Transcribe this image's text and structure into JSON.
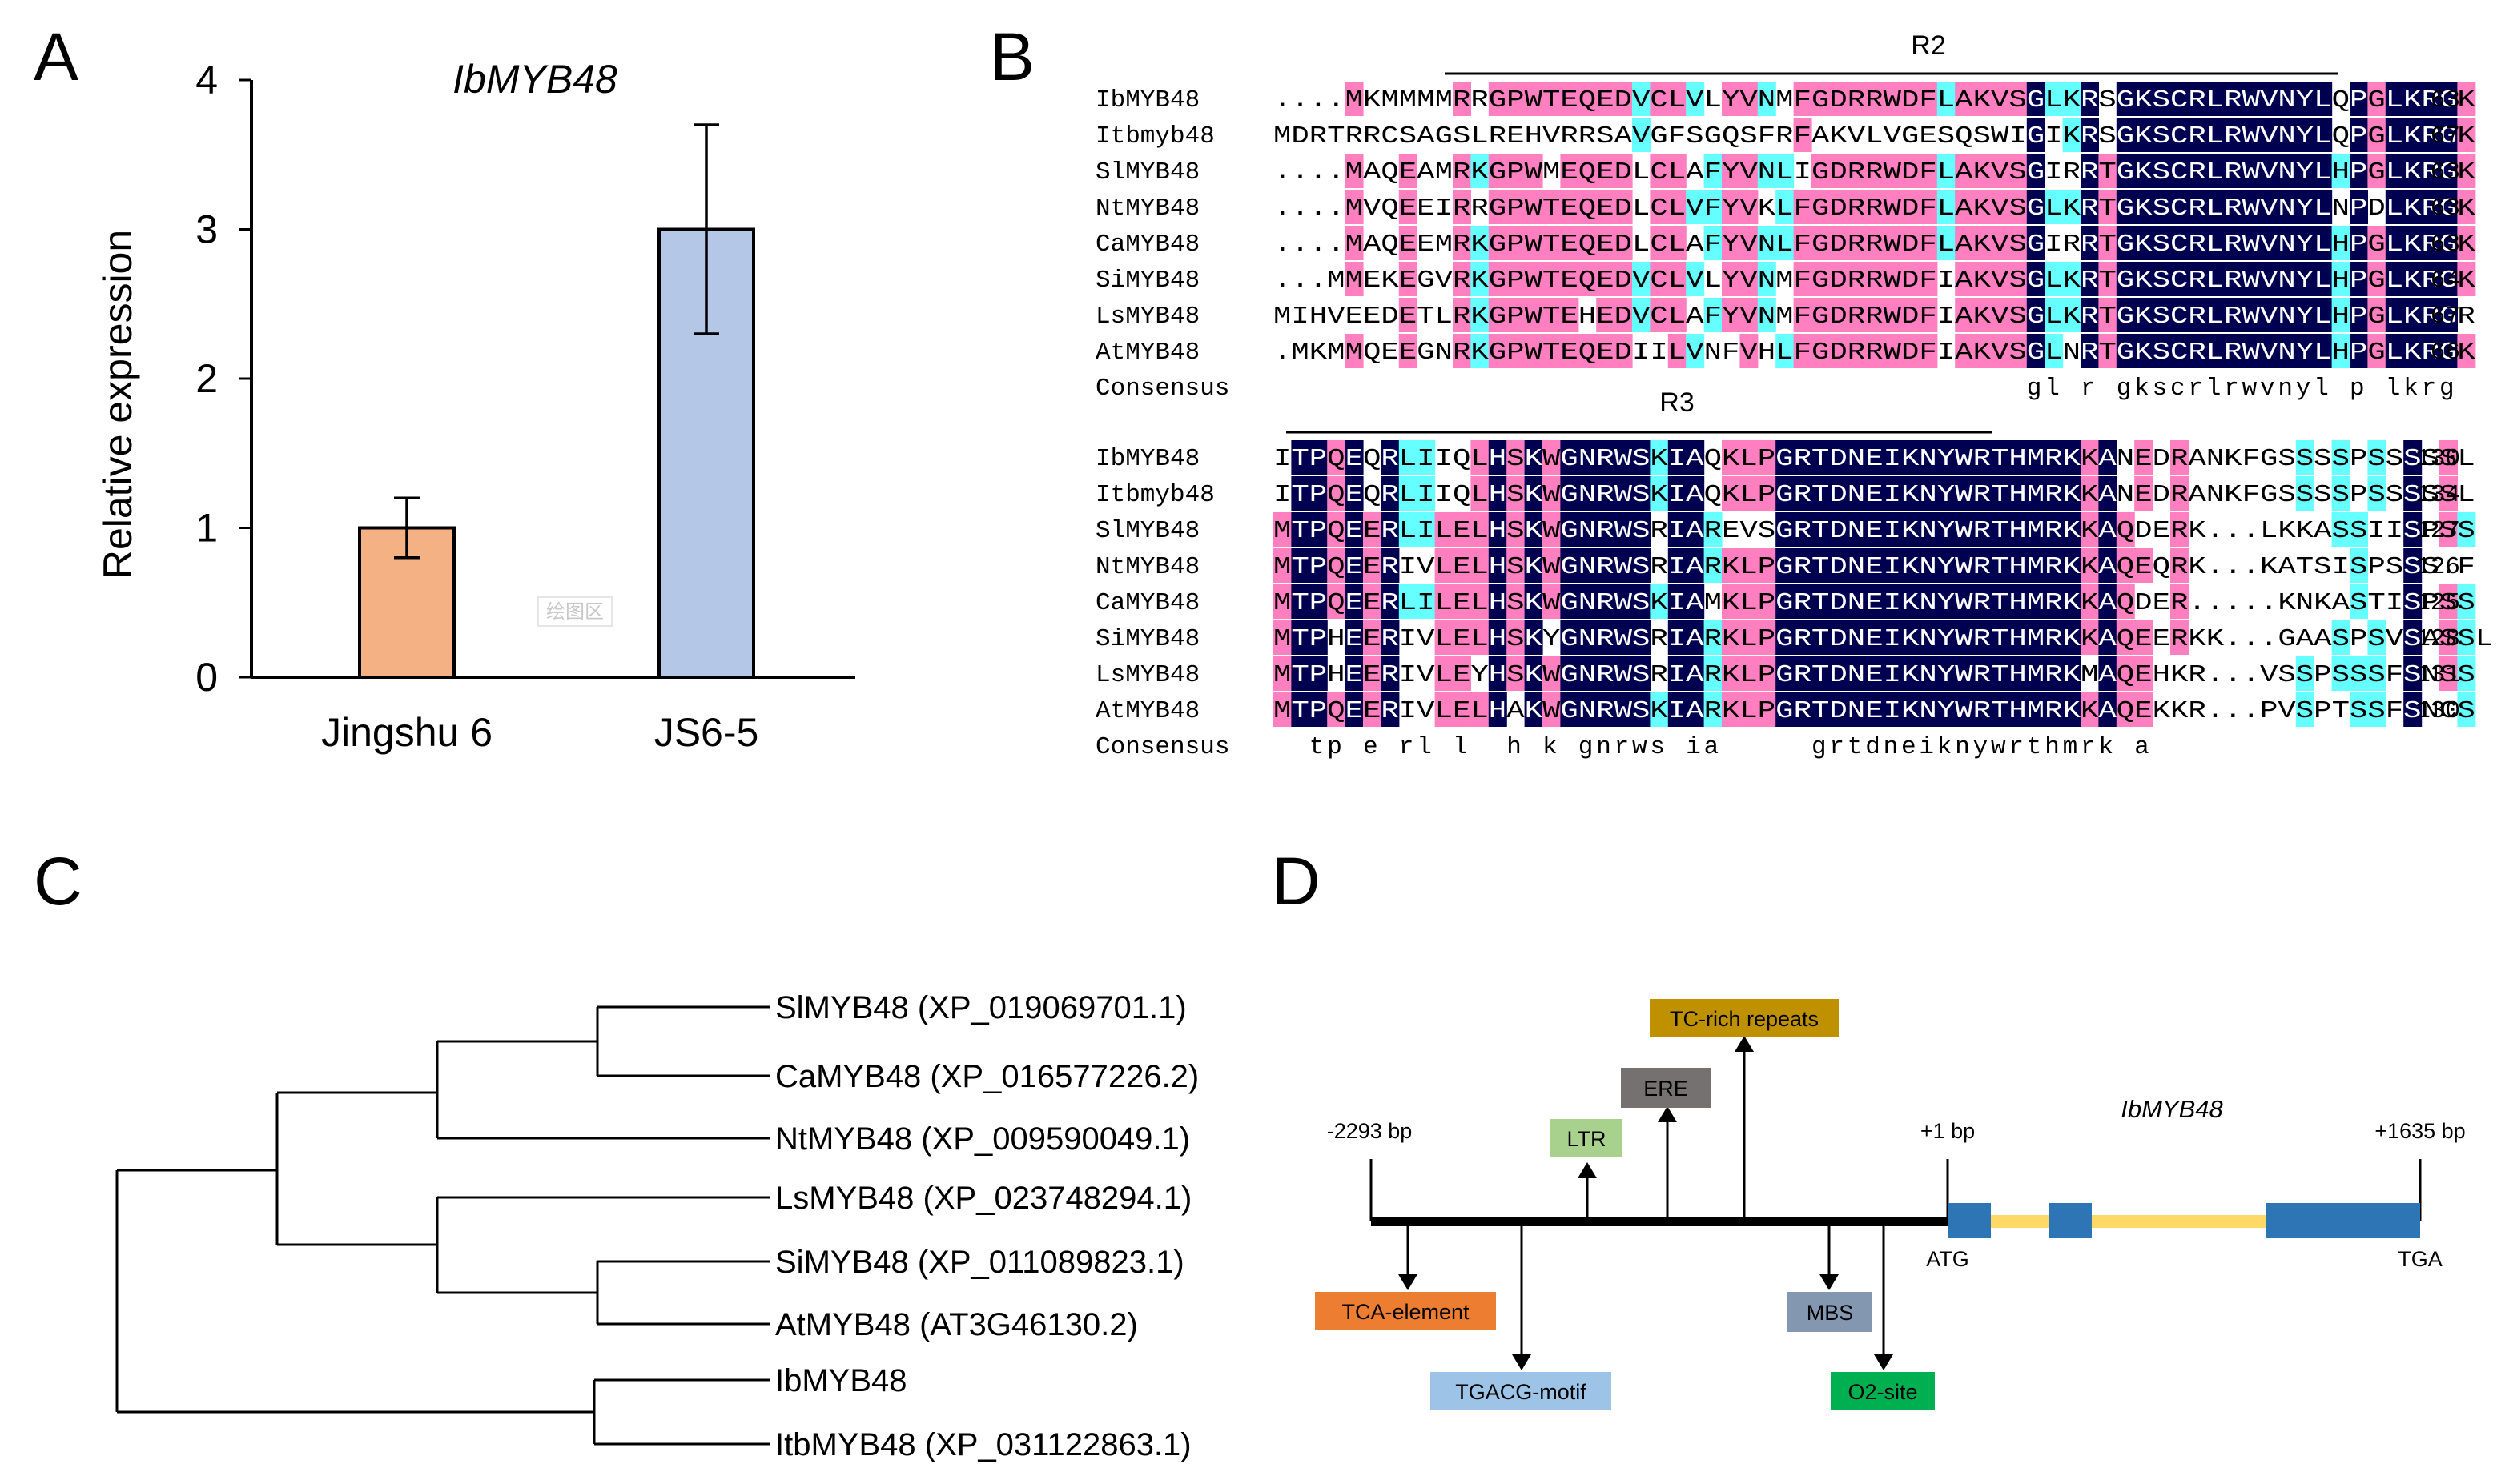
{
  "panels": {
    "a": "A",
    "b": "B",
    "c": "C",
    "d": "D"
  },
  "watermark": "绘图区",
  "chart_data": {
    "type": "bar",
    "title": "IbMYB48",
    "categories": [
      "Jingshu 6",
      "JS6-5"
    ],
    "values": [
      1.0,
      3.0
    ],
    "errors": [
      0.2,
      0.7
    ],
    "colors": [
      "#f4b183",
      "#b4c7e7"
    ],
    "ylabel": "Relative expression",
    "xlabel": "",
    "ylim": [
      0,
      4
    ],
    "yticks": [
      "0",
      "1",
      "2",
      "3",
      "4"
    ]
  },
  "alignment": {
    "domain_r2": "R2",
    "domain_r3": "R3",
    "block1": {
      "rows": [
        {
          "name": "IbMYB48",
          "seq": "....MKMMMMRRGPWTEQEDVCLVLYVNMFGDRRWDFLAKVSGLKRSGKSCRLRWVNYLQPGLKRGK",
          "num": "63"
        },
        {
          "name": "Itbmyb48",
          "seq": "MDRTRRCSAGSLREHVRRSAVGFSGQSFRFAKVLVGESQSWIGIKRSGKSCRLRWVNYLQPGLKRGK",
          "num": "67"
        },
        {
          "name": "SlMYB48",
          "seq": "....MAQEAMRKGPWMEQEDLCLAFYVNLIGDRRWDFLAKVSGIRRTGKSCRLRWVNYLHPGLKRGK",
          "num": "63"
        },
        {
          "name": "NtMYB48",
          "seq": "....MVQEEIRRGPWTEQEDLCLVFYVKLFGDRRWDFLAKVSGLKRTGKSCRLRWVNYLNPDLKRGK",
          "num": "63"
        },
        {
          "name": "CaMYB48",
          "seq": "....MAQEEMRKGPWTEQEDLCLAFYVNLFGDRRWDFLAKVSGIRRTGKSCRLRWVNYLHPGLKRGK",
          "num": "63"
        },
        {
          "name": "SiMYB48",
          "seq": "...MMEKEGVRKGPWTEQEDVCLVLYVNMFGDRRWDFIAKVSGLKRTGKSCRLRWVNYLHPGLKRGK",
          "num": "64"
        },
        {
          "name": "LsMYB48",
          "seq": "MIHVEEDETLRKGPWTEHEDVCLAFYVNMFGDRRWDFIAKVSGLKRTGKSCRLRWVNYLHPGLKRGR",
          "num": "67"
        },
        {
          "name": "AtMYB48",
          "seq": ".MKMMQEEGNRKGPWTEQEDIILVNFVHLFGDRRWDFIAKVSGLNRTGKSCRLRWVNYLHPGLKRGK",
          "num": "66"
        }
      ],
      "consensus_label": "Consensus",
      "consensus": "                                          gl r gkscrlrwvnyl p lkrg"
    },
    "block2": {
      "rows": [
        {
          "name": "IbMYB48",
          "seq": "ITPQEQRLIIQLHSKWGNRWSKIAQKLPGRTDNEIKNYWRTHMRKKANEDRANKFGSSSSPSSSSSL",
          "num": "130"
        },
        {
          "name": "Itbmyb48",
          "seq": "ITPQEQRLIIQLHSKWGNRWSKIAQKLPGRTDNEIKNYWRTHMRKKANEDRANKFGSSSSPSSSSSL",
          "num": "134"
        },
        {
          "name": "SlMYB48",
          "seq": "MTPQEERLILELHSKWGNRWSRIAREVSGRTDNEIKNYWRTHMRKKAQDERK...LKKASSIISPSS",
          "num": "127"
        },
        {
          "name": "NtMYB48",
          "seq": "MTPQEERIVLELHSKWGNRWSRIARKLPGRTDNEIKNYWRTHMRKKAQEQRK...KATSISPSSS.F",
          "num": "126"
        },
        {
          "name": "CaMYB48",
          "seq": "MTPQEERLILELHSKWGNRWSKIAMKLPGRTDNEIKNYWRTHMRKKAQDER.....KNKASTISPSS",
          "num": "125"
        },
        {
          "name": "SiMYB48",
          "seq": "MTPHEERIVLELHSKYGNRWSRIARKLPGRTDNEIKNYWRTHMRKKAQEERKK...GAASPSVSASSL",
          "num": "128"
        },
        {
          "name": "LsMYB48",
          "seq": "MTPHEERIVLEYHSKWGNRWSRIARKLPGRTDNEIKNYWRTHMRKMAQEHKR...VSSPSSSFSNSS",
          "num": "131"
        },
        {
          "name": "AtMYB48",
          "seq": "MTPQEERIVLELHAKWGNRWSKIARKLPGRTDNEIKNYWRTHMRKKAQEKKR...PVSPTSSFSNCS",
          "num": "130"
        }
      ],
      "consensus_label": "Consensus",
      "consensus": "  tp e rl l  h k gnrws ia     grtdneiknywrthmrk a"
    }
  },
  "tree": {
    "leaves": [
      "SlMYB48 (XP_019069701.1)",
      "CaMYB48 (XP_016577226.2)",
      "NtMYB48 (XP_009590049.1)",
      "LsMYB48 (XP_023748294.1)",
      "SiMYB48 (XP_011089823.1)",
      "AtMYB48 (AT3G46130.2)",
      "IbMYB48",
      "ItbMYB48 (XP_031122863.1)"
    ]
  },
  "promoter": {
    "gene": "IbMYB48",
    "start_label": "-2293 bp",
    "tss_label": "+1 bp",
    "end_label": "+1635 bp",
    "atg": "ATG",
    "tga": "TGA",
    "elements_above": [
      {
        "label": "LTR",
        "color": "#a9d18e"
      },
      {
        "label": "ERE",
        "color": "#767171"
      },
      {
        "label": "TC-rich repeats",
        "color": "#bf9000"
      }
    ],
    "elements_below": [
      {
        "label": "TCA-element",
        "color": "#ed7d31"
      },
      {
        "label": "TGACG-motif",
        "color": "#9dc3e6"
      },
      {
        "label": "MBS",
        "color": "#8497b0"
      },
      {
        "label": "O2-site",
        "color": "#00b050"
      }
    ]
  }
}
